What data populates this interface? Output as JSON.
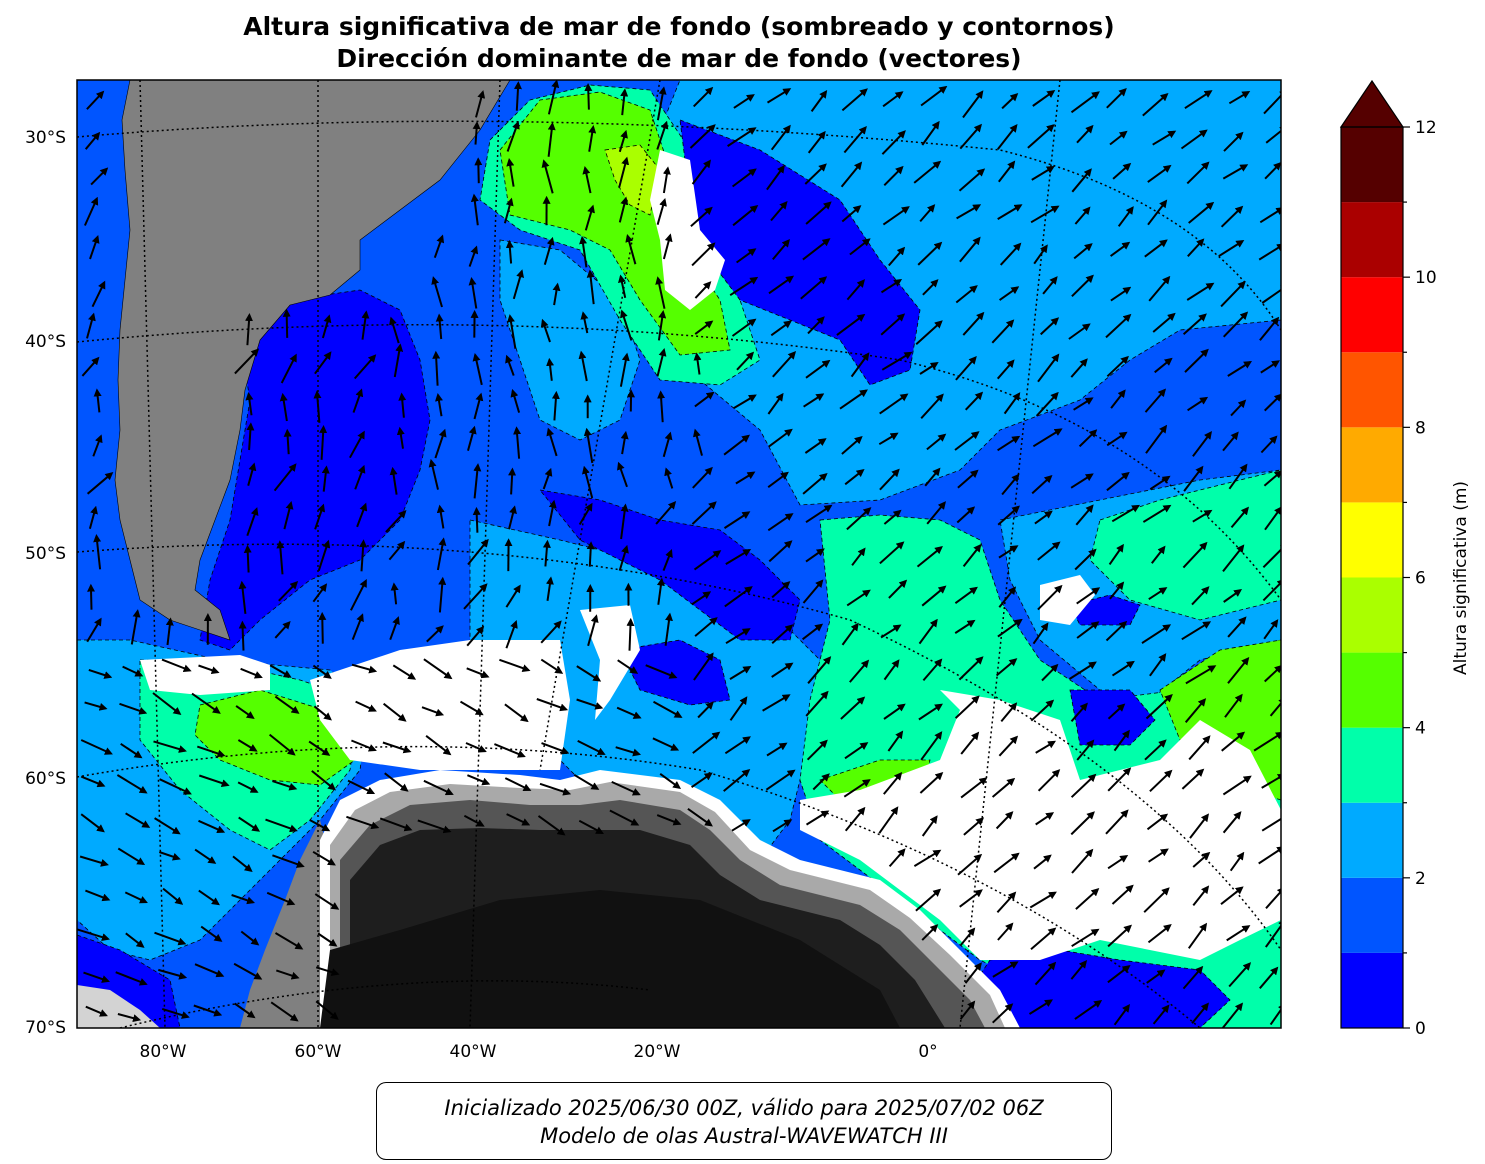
{
  "title": {
    "line1": "Altura significativa de mar de fondo (sombreado y contornos)",
    "line2": "Dirección dominante de mar de fondo (vectores)"
  },
  "map": {
    "lat_labels": [
      "30°S",
      "40°S",
      "50°S",
      "60°S",
      "70°S"
    ],
    "lon_labels": [
      "80°W",
      "60°W",
      "40°W",
      "20°W",
      "0°"
    ],
    "colors": {
      "land": "#808080",
      "ice": "#ffffff",
      "antarctica_dark": "#1e1e1e"
    }
  },
  "colorbar": {
    "title": "Altura significativa (m)",
    "ticks": [
      "0",
      "2",
      "4",
      "6",
      "8",
      "10",
      "12"
    ],
    "levels": [
      {
        "from": 0,
        "to": 1,
        "color": "#0000ff"
      },
      {
        "from": 1,
        "to": 2,
        "color": "#0055ff"
      },
      {
        "from": 2,
        "to": 3,
        "color": "#00aaff"
      },
      {
        "from": 3,
        "to": 4,
        "color": "#00ffaa"
      },
      {
        "from": 4,
        "to": 5,
        "color": "#55ff00"
      },
      {
        "from": 5,
        "to": 6,
        "color": "#aaff00"
      },
      {
        "from": 6,
        "to": 7,
        "color": "#ffff00"
      },
      {
        "from": 7,
        "to": 8,
        "color": "#ffaa00"
      },
      {
        "from": 8,
        "to": 9,
        "color": "#ff5500"
      },
      {
        "from": 9,
        "to": 10,
        "color": "#ff0000"
      },
      {
        "from": 10,
        "to": 11,
        "color": "#aa0000"
      },
      {
        "from": 11,
        "to": 12,
        "color": "#550000"
      }
    ],
    "extend_color": "#550000"
  },
  "footer": {
    "line1": "Inicializado 2025/06/30 00Z, válido para 2025/07/02 06Z",
    "line2": "Modelo de olas Austral-WAVEWATCH III"
  }
}
